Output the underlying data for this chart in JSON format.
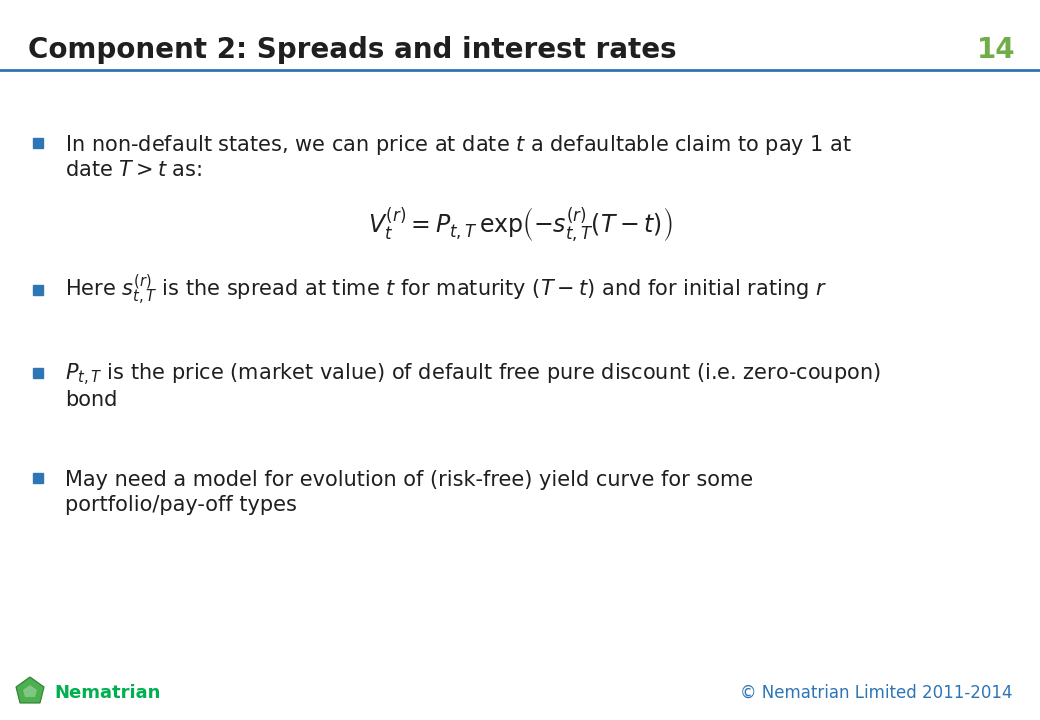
{
  "title": "Component 2: Spreads and interest rates",
  "slide_number": "14",
  "title_color": "#1F1F1F",
  "title_underline_color": "#2E75B6",
  "slide_number_color": "#70AD47",
  "background_color": "#FFFFFF",
  "bullet_color": "#2E75B6",
  "text_color": "#1F1F1F",
  "footer_text_color": "#2E75B6",
  "footer_nematrian_color": "#00B050",
  "footer_left": "Nematrian",
  "footer_right": "© Nematrian Limited 2011-2014"
}
